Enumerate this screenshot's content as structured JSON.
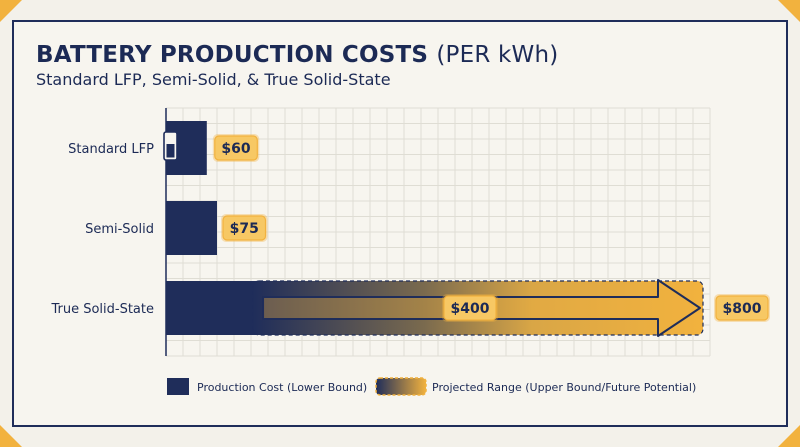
{
  "header": {
    "title_bold": "BATTERY PRODUCTION COSTS",
    "title_paren": "(PER kWh)",
    "subtitle": "Standard LFP, Semi-Solid, & True Solid-State"
  },
  "chart_data": {
    "type": "bar",
    "orientation": "horizontal",
    "categories": [
      "Standard LFP",
      "Semi-Solid",
      "True Solid-State"
    ],
    "series": [
      {
        "name": "Production Cost (Lower Bound)",
        "values": [
          60,
          75,
          400
        ]
      },
      {
        "name": "Projected Range (Upper Bound/Future Potential)",
        "values": [
          null,
          null,
          800
        ]
      }
    ],
    "value_labels": [
      "$60",
      "$75",
      "$400",
      "$800"
    ],
    "xlim": [
      0,
      800
    ],
    "grid": true,
    "legend": "bottom",
    "colors": {
      "production": "#1f2d5a",
      "projected": "#f2b23e",
      "label_bg": "#f7c864",
      "label_border": "#f2b23e"
    },
    "icons": [
      "battery-icon"
    ]
  }
}
